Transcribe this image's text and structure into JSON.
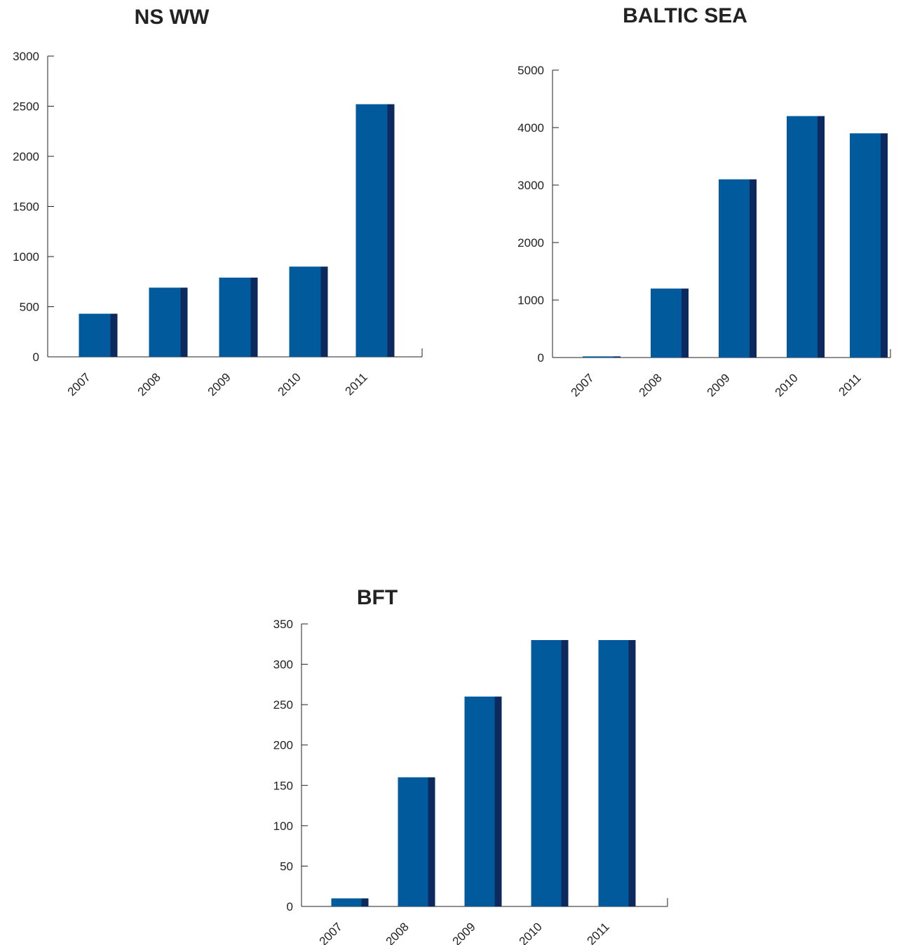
{
  "chart_data": [
    {
      "type": "bar",
      "title": "NS WW",
      "categories": [
        "2007",
        "2008",
        "2009",
        "2010",
        "2011"
      ],
      "values": [
        430,
        690,
        790,
        900,
        2520
      ],
      "yticks": [
        0,
        500,
        1000,
        1500,
        2000,
        2500,
        3000
      ],
      "ylim": [
        0,
        3000
      ],
      "xlabel": "",
      "ylabel": "",
      "grid": false,
      "colors": {
        "front": "#005a9c",
        "side": "#0d2a5e"
      }
    },
    {
      "type": "bar",
      "title": "BALTIC SEA",
      "categories": [
        "2007",
        "2008",
        "2009",
        "2010",
        "2011"
      ],
      "values": [
        20,
        1200,
        3100,
        4200,
        3900
      ],
      "yticks": [
        0,
        1000,
        2000,
        3000,
        4000,
        5000
      ],
      "ylim": [
        0,
        5000
      ],
      "xlabel": "",
      "ylabel": "",
      "grid": false,
      "colors": {
        "front": "#005a9c",
        "side": "#0d2a5e"
      }
    },
    {
      "type": "bar",
      "title": "BFT",
      "categories": [
        "2007",
        "2008",
        "2009",
        "2010",
        "2011"
      ],
      "values": [
        10,
        160,
        260,
        330,
        330
      ],
      "yticks": [
        0,
        50,
        100,
        150,
        200,
        250,
        300,
        350
      ],
      "ylim": [
        0,
        350
      ],
      "xlabel": "",
      "ylabel": "",
      "grid": false,
      "colors": {
        "front": "#005a9c",
        "side": "#0d2a5e"
      }
    }
  ]
}
